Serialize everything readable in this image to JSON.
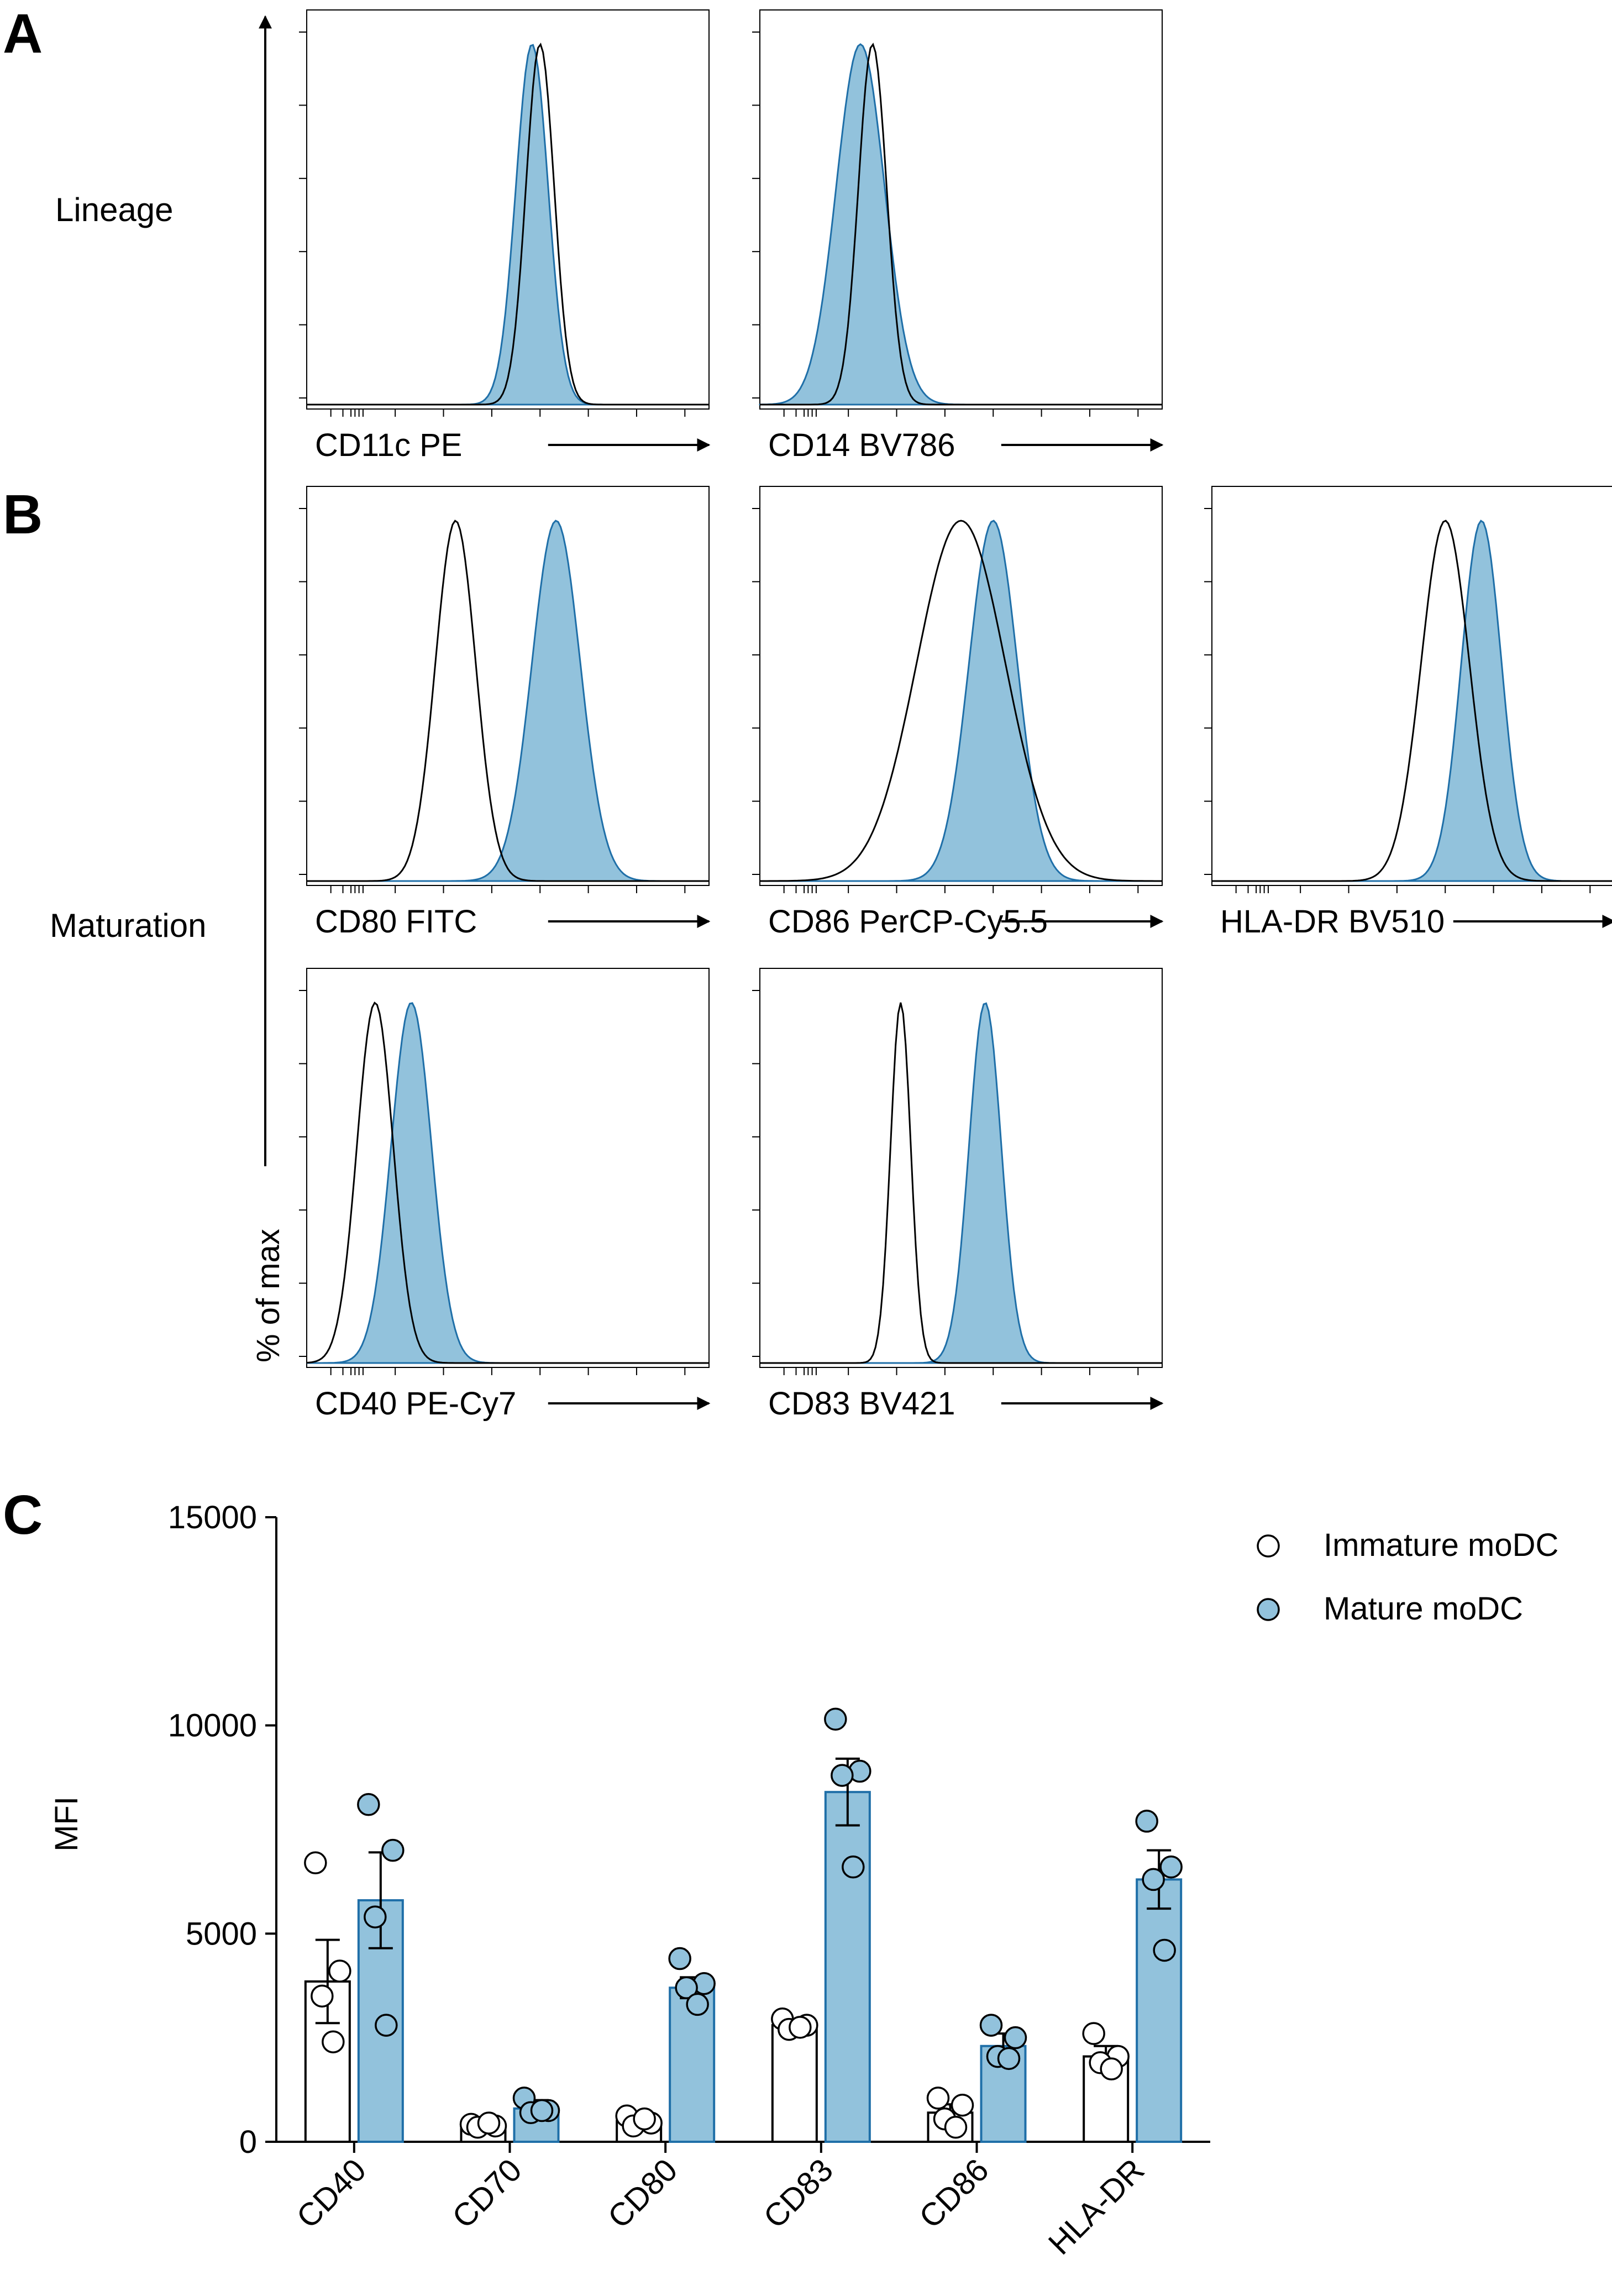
{
  "panels": {
    "a_letter": "A",
    "b_letter": "B",
    "c_letter": "C",
    "lineage_label": "Lineage",
    "maturation_label": "Maturation",
    "histogram_ylabel": "% of max"
  },
  "colors": {
    "mature_fill": "#92c2dc",
    "mature_stroke": "#1f6fa8",
    "immature_stroke": "#000000",
    "axis": "#000000"
  },
  "chart_data": [
    {
      "type": "area",
      "panel": "A",
      "name": "CD11c",
      "xlabel": "CD11c PE",
      "series": [
        {
          "name": "immature",
          "peak": 0.58,
          "sd": 0.035
        },
        {
          "name": "mature",
          "peak": 0.56,
          "sd": 0.04
        }
      ]
    },
    {
      "type": "area",
      "panel": "A",
      "name": "CD14",
      "xlabel": "CD14 BV786",
      "series": [
        {
          "name": "immature",
          "peak": 0.28,
          "sd": 0.035
        },
        {
          "name": "mature",
          "peak": 0.25,
          "sd": 0.06
        }
      ]
    },
    {
      "type": "area",
      "panel": "B",
      "name": "CD80",
      "xlabel": "CD80 FITC",
      "series": [
        {
          "name": "immature",
          "peak": 0.37,
          "sd": 0.05
        },
        {
          "name": "mature",
          "peak": 0.62,
          "sd": 0.06
        }
      ]
    },
    {
      "type": "area",
      "panel": "B",
      "name": "CD86",
      "xlabel": "CD86 PerCP-Cy5.5",
      "series": [
        {
          "name": "immature",
          "peak": 0.5,
          "sd": 0.11
        },
        {
          "name": "mature",
          "peak": 0.58,
          "sd": 0.06
        }
      ]
    },
    {
      "type": "area",
      "panel": "B",
      "name": "HLA-DR",
      "xlabel": "HLA-DR BV510",
      "series": [
        {
          "name": "immature",
          "peak": 0.58,
          "sd": 0.06
        },
        {
          "name": "mature",
          "peak": 0.67,
          "sd": 0.05
        }
      ]
    },
    {
      "type": "area",
      "panel": "B",
      "name": "CD40",
      "xlabel": "CD40 PE-Cy7",
      "series": [
        {
          "name": "immature",
          "peak": 0.17,
          "sd": 0.045
        },
        {
          "name": "mature",
          "peak": 0.26,
          "sd": 0.05
        }
      ]
    },
    {
      "type": "area",
      "panel": "B",
      "name": "CD83",
      "xlabel": "CD83 BV421",
      "series": [
        {
          "name": "immature",
          "peak": 0.35,
          "sd": 0.025
        },
        {
          "name": "mature",
          "peak": 0.56,
          "sd": 0.04
        }
      ]
    },
    {
      "type": "bar",
      "panel": "C",
      "ylabel": "MFI",
      "ylim": [
        0,
        15000
      ],
      "yticks": [
        "0",
        "5000",
        "10000",
        "15000"
      ],
      "categories": [
        "CD40",
        "CD70",
        "CD80",
        "CD83",
        "CD86",
        "HLA-DR"
      ],
      "legend": "top-right",
      "series": [
        {
          "name": "Immature moDC",
          "values": [
            3850,
            400,
            500,
            2800,
            700,
            2050
          ],
          "sem": [
            1000,
            100,
            100,
            150,
            200,
            250
          ],
          "points": [
            [
              6700,
              4100,
              3500,
              2400
            ],
            [
              420,
              380,
              350,
              450
            ],
            [
              620,
              450,
              380,
              550
            ],
            [
              2950,
              2800,
              2700,
              2750
            ],
            [
              1050,
              880,
              550,
              350
            ],
            [
              2600,
              2050,
              1900,
              1750
            ]
          ]
        },
        {
          "name": "Mature moDC",
          "values": [
            5800,
            800,
            3700,
            8400,
            2300,
            6300
          ],
          "sem": [
            1150,
            200,
            250,
            800,
            300,
            700
          ],
          "points": [
            [
              8100,
              7000,
              5400,
              2800
            ],
            [
              1050,
              750,
              700,
              750
            ],
            [
              4400,
              3800,
              3700,
              3300
            ],
            [
              10150,
              8900,
              8800,
              6600
            ],
            [
              2800,
              2500,
              2050,
              2000
            ],
            [
              7700,
              6600,
              6300,
              4600
            ]
          ]
        }
      ]
    }
  ]
}
